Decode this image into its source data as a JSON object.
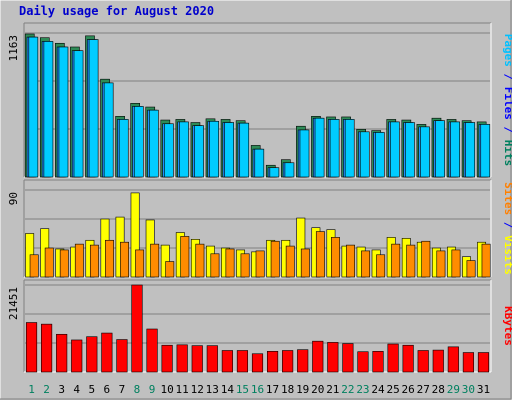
{
  "chart_data": {
    "type": "bar",
    "title": "Daily usage for August 2020",
    "categories": [
      "1",
      "2",
      "3",
      "4",
      "5",
      "6",
      "7",
      "8",
      "9",
      "10",
      "11",
      "12",
      "13",
      "14",
      "15",
      "16",
      "17",
      "18",
      "19",
      "20",
      "21",
      "22",
      "23",
      "24",
      "25",
      "26",
      "27",
      "28",
      "29",
      "30",
      "31"
    ],
    "weekend_days": [
      "1",
      "2",
      "8",
      "9",
      "15",
      "16",
      "22",
      "23",
      "29",
      "30"
    ],
    "panels": [
      {
        "name": "pages-files-hits",
        "ymax_label": "1163",
        "ymax": 1163,
        "legend": [
          {
            "text": "Pages",
            "color": "#00c0ff"
          },
          {
            "text": "Files",
            "color": "#0000ff"
          },
          {
            "text": "Hits",
            "color": "#00805f"
          }
        ],
        "separator": " / ",
        "series": [
          {
            "name": "Hits",
            "color": "#2e8b57",
            "values": [
              1155,
              1125,
              1080,
              1050,
              1140,
              790,
              490,
              595,
              565,
              460,
              465,
              440,
              470,
              465,
              455,
              255,
              95,
              140,
              410,
              490,
              485,
              485,
              385,
              375,
              465,
              460,
              425,
              475,
              465,
              455,
              445
            ]
          },
          {
            "name": "Files",
            "color": "#1e90ff",
            "values": [
              1130,
              1095,
              1050,
              1020,
              1110,
              760,
              465,
              570,
              540,
              430,
              445,
              415,
              450,
              440,
              435,
              225,
              75,
              115,
              380,
              475,
              465,
              465,
              365,
              360,
              445,
              440,
              405,
              455,
              445,
              440,
              425
            ]
          },
          {
            "name": "Pages",
            "color": "#00ccff",
            "values": [
              1130,
              1095,
              1050,
              1020,
              1110,
              760,
              465,
              570,
              540,
              430,
              445,
              415,
              450,
              440,
              435,
              225,
              75,
              115,
              380,
              475,
              465,
              465,
              365,
              360,
              445,
              440,
              405,
              455,
              445,
              440,
              425
            ]
          }
        ]
      },
      {
        "name": "visits-sites",
        "ymax_label": "90",
        "ymax": 90,
        "legend": [
          {
            "text": "Sites",
            "color": "#ff8000"
          },
          {
            "text": "Visits",
            "color": "#ffff00"
          }
        ],
        "separator": " / ",
        "series": [
          {
            "name": "Visits",
            "color": "#ffff00",
            "values": [
              45,
              50,
              29,
              31,
              38,
              60,
              62,
              87,
              59,
              33,
              46,
              39,
              32,
              30,
              28,
              26,
              38,
              38,
              61,
              51,
              49,
              32,
              31,
              28,
              41,
              40,
              36,
              30,
              31,
              21,
              36
            ]
          },
          {
            "name": "Sites",
            "color": "#ff8c00",
            "values": [
              23,
              30,
              28,
              34,
              33,
              38,
              36,
              28,
              34,
              16,
              42,
              34,
              24,
              29,
              24,
              27,
              37,
              32,
              29,
              47,
              41,
              33,
              27,
              23,
              34,
              33,
              37,
              27,
              28,
              17,
              34
            ]
          }
        ]
      },
      {
        "name": "kbytes",
        "ymax_label": "21451",
        "ymax": 21451,
        "legend": [
          {
            "text": "KBytes",
            "color": "#ff0000"
          }
        ],
        "separator": "",
        "series": [
          {
            "name": "KBytes",
            "color": "#ff0000",
            "values": [
              12200,
              11800,
              9300,
              7900,
              8700,
              9600,
              8000,
              21451,
              10600,
              6600,
              6700,
              6500,
              6500,
              5300,
              5300,
              4500,
              5100,
              5300,
              5500,
              7600,
              7300,
              7000,
              5000,
              5100,
              6900,
              6600,
              5300,
              5400,
              6200,
              4800,
              4800
            ]
          }
        ]
      }
    ]
  }
}
